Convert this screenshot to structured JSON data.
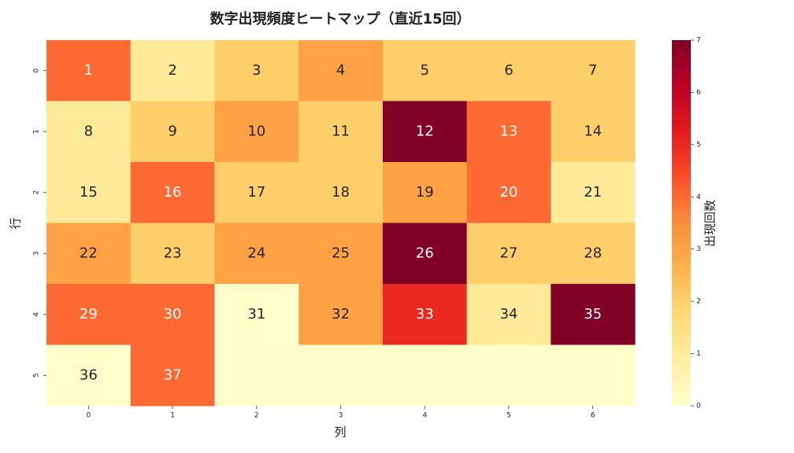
{
  "chart_data": {
    "type": "heatmap",
    "title": "数字出現頻度ヒートマップ（直近15回）",
    "xlabel": "列",
    "ylabel": "行",
    "x_categories": [
      0,
      1,
      2,
      3,
      4,
      5,
      6
    ],
    "y_categories": [
      0,
      1,
      2,
      3,
      4,
      5
    ],
    "values": [
      [
        4,
        1,
        2,
        3,
        2,
        2,
        2
      ],
      [
        1,
        2,
        3,
        2,
        7,
        4,
        2
      ],
      [
        1,
        4,
        2,
        2,
        3,
        4,
        1
      ],
      [
        3,
        2,
        3,
        3,
        7,
        2,
        2
      ],
      [
        4,
        4,
        0,
        3,
        5,
        1,
        7
      ],
      [
        0,
        4,
        0,
        0,
        0,
        0,
        0
      ]
    ],
    "annotations": [
      [
        1,
        2,
        3,
        4,
        5,
        6,
        7
      ],
      [
        8,
        9,
        10,
        11,
        12,
        13,
        14
      ],
      [
        15,
        16,
        17,
        18,
        19,
        20,
        21
      ],
      [
        22,
        23,
        24,
        25,
        26,
        27,
        28
      ],
      [
        29,
        30,
        31,
        32,
        33,
        34,
        35
      ],
      [
        36,
        37,
        null,
        null,
        null,
        null,
        null
      ]
    ],
    "colormap": "YlOrRd",
    "colorbar": {
      "label": "出現回数",
      "lim": [
        0,
        7
      ],
      "ticks": [
        0,
        1,
        2,
        3,
        4,
        5,
        6,
        7
      ]
    }
  }
}
